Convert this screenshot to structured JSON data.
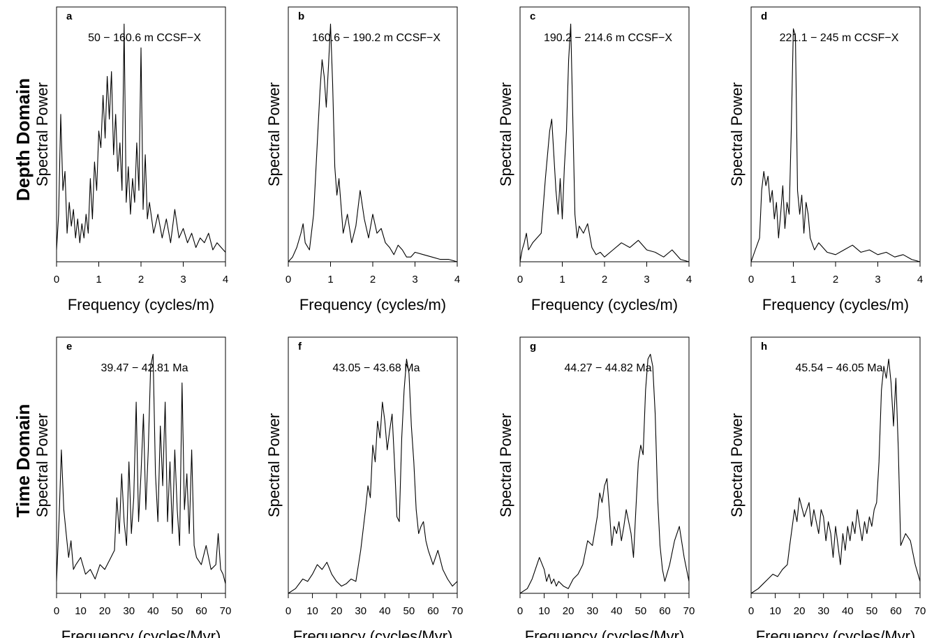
{
  "row_labels": {
    "depth": "Depth Domain",
    "time": "Time Domain"
  },
  "chart_data": [
    {
      "type": "line",
      "letter": "a",
      "range": "50 − 160.6 m CCSF−X",
      "xlabel": "Frequency (cycles/m)",
      "ylabel": "Spectral Power",
      "xlim": [
        0,
        4
      ],
      "xticks": [
        "0",
        "1",
        "2",
        "3",
        "4"
      ],
      "series": [
        {
          "x": [
            0,
            0.05,
            0.1,
            0.15,
            0.2,
            0.25,
            0.3,
            0.35,
            0.4,
            0.45,
            0.5,
            0.55,
            0.6,
            0.65,
            0.7,
            0.75,
            0.8,
            0.85,
            0.9,
            0.95,
            1.0,
            1.05,
            1.1,
            1.15,
            1.2,
            1.25,
            1.3,
            1.35,
            1.4,
            1.45,
            1.5,
            1.55,
            1.6,
            1.65,
            1.7,
            1.75,
            1.8,
            1.85,
            1.9,
            1.95,
            2.0,
            2.05,
            2.1,
            2.15,
            2.2,
            2.3,
            2.4,
            2.5,
            2.6,
            2.7,
            2.8,
            2.9,
            3.0,
            3.1,
            3.2,
            3.3,
            3.4,
            3.5,
            3.6,
            3.7,
            3.8,
            3.9,
            4.0
          ],
          "y": [
            0.05,
            0.2,
            0.62,
            0.3,
            0.38,
            0.12,
            0.25,
            0.15,
            0.22,
            0.1,
            0.18,
            0.08,
            0.16,
            0.1,
            0.2,
            0.12,
            0.35,
            0.18,
            0.42,
            0.3,
            0.55,
            0.48,
            0.7,
            0.52,
            0.78,
            0.6,
            0.8,
            0.45,
            0.62,
            0.38,
            0.5,
            0.3,
            1.0,
            0.25,
            0.4,
            0.2,
            0.35,
            0.25,
            0.5,
            0.3,
            0.9,
            0.22,
            0.45,
            0.18,
            0.25,
            0.12,
            0.2,
            0.1,
            0.18,
            0.08,
            0.22,
            0.1,
            0.14,
            0.08,
            0.12,
            0.06,
            0.1,
            0.08,
            0.12,
            0.05,
            0.08,
            0.06,
            0.04
          ]
        }
      ]
    },
    {
      "type": "line",
      "letter": "b",
      "range": "160.6 − 190.2 m CCSF−X",
      "xlabel": "Frequency (cycles/m)",
      "ylabel": "Spectral Power",
      "xlim": [
        0,
        4
      ],
      "xticks": [
        "0",
        "1",
        "2",
        "3",
        "4"
      ],
      "series": [
        {
          "x": [
            0,
            0.1,
            0.2,
            0.3,
            0.35,
            0.4,
            0.5,
            0.6,
            0.7,
            0.75,
            0.8,
            0.85,
            0.9,
            0.95,
            1.0,
            1.05,
            1.1,
            1.15,
            1.2,
            1.3,
            1.4,
            1.5,
            1.6,
            1.7,
            1.8,
            1.9,
            2.0,
            2.1,
            2.2,
            2.3,
            2.4,
            2.5,
            2.6,
            2.7,
            2.8,
            2.9,
            3.0,
            3.2,
            3.4,
            3.6,
            3.8,
            4.0
          ],
          "y": [
            0.0,
            0.02,
            0.06,
            0.12,
            0.16,
            0.08,
            0.05,
            0.2,
            0.55,
            0.72,
            0.85,
            0.78,
            0.65,
            0.82,
            1.0,
            0.75,
            0.4,
            0.28,
            0.35,
            0.12,
            0.2,
            0.08,
            0.15,
            0.3,
            0.18,
            0.1,
            0.2,
            0.12,
            0.14,
            0.08,
            0.06,
            0.03,
            0.07,
            0.05,
            0.02,
            0.02,
            0.04,
            0.03,
            0.02,
            0.01,
            0.01,
            0.0
          ]
        }
      ]
    },
    {
      "type": "line",
      "letter": "c",
      "range": "190.2 − 214.6 m CCSF−X",
      "xlabel": "Frequency (cycles/m)",
      "ylabel": "Spectral Power",
      "xlim": [
        0,
        4
      ],
      "xticks": [
        "0",
        "1",
        "2",
        "3",
        "4"
      ],
      "series": [
        {
          "x": [
            0,
            0.05,
            0.1,
            0.15,
            0.2,
            0.3,
            0.4,
            0.5,
            0.6,
            0.7,
            0.75,
            0.8,
            0.85,
            0.9,
            0.95,
            1.0,
            1.05,
            1.1,
            1.15,
            1.2,
            1.25,
            1.3,
            1.35,
            1.4,
            1.5,
            1.6,
            1.7,
            1.8,
            1.9,
            2.0,
            2.2,
            2.4,
            2.6,
            2.8,
            3.0,
            3.2,
            3.4,
            3.6,
            3.8,
            4.0
          ],
          "y": [
            0.0,
            0.05,
            0.08,
            0.12,
            0.05,
            0.08,
            0.1,
            0.12,
            0.35,
            0.55,
            0.6,
            0.45,
            0.3,
            0.2,
            0.35,
            0.18,
            0.4,
            0.55,
            0.85,
            1.0,
            0.6,
            0.2,
            0.1,
            0.15,
            0.12,
            0.16,
            0.06,
            0.03,
            0.04,
            0.02,
            0.05,
            0.08,
            0.06,
            0.09,
            0.05,
            0.04,
            0.02,
            0.05,
            0.01,
            0.0
          ]
        }
      ]
    },
    {
      "type": "line",
      "letter": "d",
      "range": "221.1 − 245 m CCSF−X",
      "xlabel": "Frequency (cycles/m)",
      "ylabel": "Spectral Power",
      "xlim": [
        0,
        4
      ],
      "xticks": [
        "0",
        "1",
        "2",
        "3",
        "4"
      ],
      "series": [
        {
          "x": [
            0,
            0.1,
            0.2,
            0.25,
            0.3,
            0.35,
            0.4,
            0.45,
            0.5,
            0.55,
            0.6,
            0.65,
            0.7,
            0.75,
            0.8,
            0.85,
            0.9,
            0.95,
            1.0,
            1.05,
            1.1,
            1.15,
            1.2,
            1.25,
            1.3,
            1.35,
            1.4,
            1.5,
            1.6,
            1.8,
            2.0,
            2.2,
            2.4,
            2.6,
            2.8,
            3.0,
            3.2,
            3.4,
            3.6,
            3.8,
            4.0
          ],
          "y": [
            0.0,
            0.05,
            0.1,
            0.3,
            0.38,
            0.32,
            0.36,
            0.25,
            0.3,
            0.18,
            0.25,
            0.1,
            0.2,
            0.32,
            0.14,
            0.25,
            0.2,
            0.55,
            0.98,
            0.95,
            0.3,
            0.2,
            0.28,
            0.12,
            0.25,
            0.2,
            0.1,
            0.05,
            0.08,
            0.04,
            0.03,
            0.05,
            0.07,
            0.04,
            0.05,
            0.03,
            0.04,
            0.02,
            0.03,
            0.01,
            0.0
          ]
        }
      ]
    },
    {
      "type": "line",
      "letter": "e",
      "range": "39.47 − 42.81 Ma",
      "xlabel": "Frequency (cycles/Myr)",
      "ylabel": "Spectral Power",
      "xlim": [
        0,
        70
      ],
      "xticks": [
        "0",
        "10",
        "20",
        "30",
        "40",
        "50",
        "60",
        "70"
      ],
      "series": [
        {
          "x": [
            0,
            1,
            2,
            3,
            4,
            5,
            6,
            7,
            8,
            10,
            12,
            14,
            16,
            18,
            20,
            22,
            24,
            25,
            26,
            27,
            28,
            29,
            30,
            31,
            32,
            33,
            34,
            35,
            36,
            37,
            38,
            39,
            40,
            41,
            42,
            43,
            44,
            45,
            46,
            47,
            48,
            49,
            50,
            51,
            52,
            53,
            54,
            55,
            56,
            57,
            58,
            60,
            62,
            64,
            66,
            67,
            68,
            69,
            70
          ],
          "y": [
            0.05,
            0.3,
            0.6,
            0.35,
            0.25,
            0.15,
            0.22,
            0.1,
            0.12,
            0.15,
            0.08,
            0.1,
            0.06,
            0.12,
            0.1,
            0.14,
            0.18,
            0.4,
            0.25,
            0.5,
            0.3,
            0.2,
            0.55,
            0.25,
            0.4,
            0.8,
            0.3,
            0.5,
            0.75,
            0.35,
            0.6,
            0.95,
            1.0,
            0.5,
            0.3,
            0.7,
            0.45,
            0.8,
            0.3,
            0.55,
            0.25,
            0.6,
            0.35,
            0.2,
            0.88,
            0.35,
            0.5,
            0.25,
            0.6,
            0.2,
            0.15,
            0.12,
            0.2,
            0.1,
            0.12,
            0.25,
            0.1,
            0.08,
            0.04
          ]
        }
      ]
    },
    {
      "type": "line",
      "letter": "f",
      "range": "43.05 − 43.68 Ma",
      "xlabel": "Frequency (cycles/Myr)",
      "ylabel": "Spectral Power",
      "xlim": [
        0,
        70
      ],
      "xticks": [
        "0",
        "10",
        "20",
        "30",
        "40",
        "50",
        "60",
        "70"
      ],
      "series": [
        {
          "x": [
            0,
            3,
            6,
            8,
            10,
            12,
            14,
            16,
            18,
            20,
            22,
            24,
            26,
            28,
            30,
            32,
            33,
            34,
            35,
            36,
            37,
            38,
            39,
            40,
            41,
            42,
            43,
            44,
            45,
            46,
            47,
            48,
            49,
            50,
            51,
            52,
            53,
            54,
            55,
            56,
            57,
            58,
            60,
            62,
            64,
            66,
            68,
            70
          ],
          "y": [
            0.0,
            0.02,
            0.06,
            0.05,
            0.08,
            0.12,
            0.1,
            0.13,
            0.08,
            0.05,
            0.03,
            0.04,
            0.06,
            0.05,
            0.18,
            0.35,
            0.45,
            0.4,
            0.62,
            0.55,
            0.72,
            0.65,
            0.8,
            0.72,
            0.6,
            0.68,
            0.75,
            0.55,
            0.32,
            0.3,
            0.65,
            0.85,
            0.98,
            0.92,
            0.7,
            0.55,
            0.35,
            0.25,
            0.28,
            0.3,
            0.22,
            0.18,
            0.12,
            0.18,
            0.1,
            0.06,
            0.03,
            0.05
          ]
        }
      ]
    },
    {
      "type": "line",
      "letter": "g",
      "range": "44.27 − 44.82 Ma",
      "xlabel": "Frequency (cycles/Myr)",
      "ylabel": "Spectral Power",
      "xlim": [
        0,
        70
      ],
      "xticks": [
        "0",
        "10",
        "20",
        "30",
        "40",
        "50",
        "60",
        "70"
      ],
      "series": [
        {
          "x": [
            0,
            3,
            5,
            7,
            8,
            10,
            11,
            12,
            13,
            14,
            15,
            16,
            18,
            20,
            22,
            24,
            26,
            28,
            30,
            32,
            33,
            34,
            35,
            36,
            37,
            38,
            39,
            40,
            41,
            42,
            43,
            44,
            45,
            46,
            47,
            48,
            49,
            50,
            51,
            52,
            53,
            54,
            55,
            56,
            57,
            58,
            59,
            60,
            62,
            64,
            66,
            68,
            70
          ],
          "y": [
            0.0,
            0.02,
            0.06,
            0.12,
            0.15,
            0.1,
            0.05,
            0.08,
            0.04,
            0.06,
            0.03,
            0.05,
            0.03,
            0.02,
            0.06,
            0.08,
            0.12,
            0.22,
            0.2,
            0.32,
            0.42,
            0.38,
            0.45,
            0.48,
            0.35,
            0.2,
            0.28,
            0.25,
            0.3,
            0.22,
            0.28,
            0.35,
            0.3,
            0.25,
            0.15,
            0.35,
            0.55,
            0.62,
            0.58,
            0.85,
            0.98,
            1.0,
            0.95,
            0.75,
            0.4,
            0.2,
            0.1,
            0.05,
            0.12,
            0.22,
            0.28,
            0.15,
            0.05
          ]
        }
      ]
    },
    {
      "type": "line",
      "letter": "h",
      "range": "45.54 − 46.05 Ma",
      "xlabel": "Frequency (cycles/Myr)",
      "ylabel": "Spectral Power",
      "xlim": [
        0,
        70
      ],
      "xticks": [
        "0",
        "10",
        "20",
        "30",
        "40",
        "50",
        "60",
        "70"
      ],
      "series": [
        {
          "x": [
            0,
            3,
            5,
            7,
            9,
            11,
            13,
            15,
            16,
            18,
            19,
            20,
            22,
            24,
            25,
            26,
            27,
            28,
            29,
            30,
            31,
            32,
            33,
            34,
            35,
            36,
            37,
            38,
            39,
            40,
            41,
            42,
            43,
            44,
            45,
            46,
            47,
            48,
            49,
            50,
            51,
            52,
            53,
            54,
            55,
            56,
            57,
            58,
            59,
            60,
            61,
            62,
            64,
            66,
            68,
            70
          ],
          "y": [
            0.0,
            0.02,
            0.04,
            0.06,
            0.08,
            0.07,
            0.1,
            0.12,
            0.2,
            0.35,
            0.3,
            0.4,
            0.32,
            0.38,
            0.28,
            0.35,
            0.3,
            0.25,
            0.35,
            0.32,
            0.22,
            0.3,
            0.25,
            0.15,
            0.28,
            0.2,
            0.12,
            0.25,
            0.18,
            0.28,
            0.22,
            0.3,
            0.25,
            0.35,
            0.28,
            0.22,
            0.3,
            0.25,
            0.32,
            0.28,
            0.35,
            0.38,
            0.55,
            0.85,
            0.95,
            0.9,
            0.98,
            0.88,
            0.7,
            0.9,
            0.6,
            0.2,
            0.25,
            0.22,
            0.12,
            0.05
          ]
        }
      ]
    }
  ]
}
